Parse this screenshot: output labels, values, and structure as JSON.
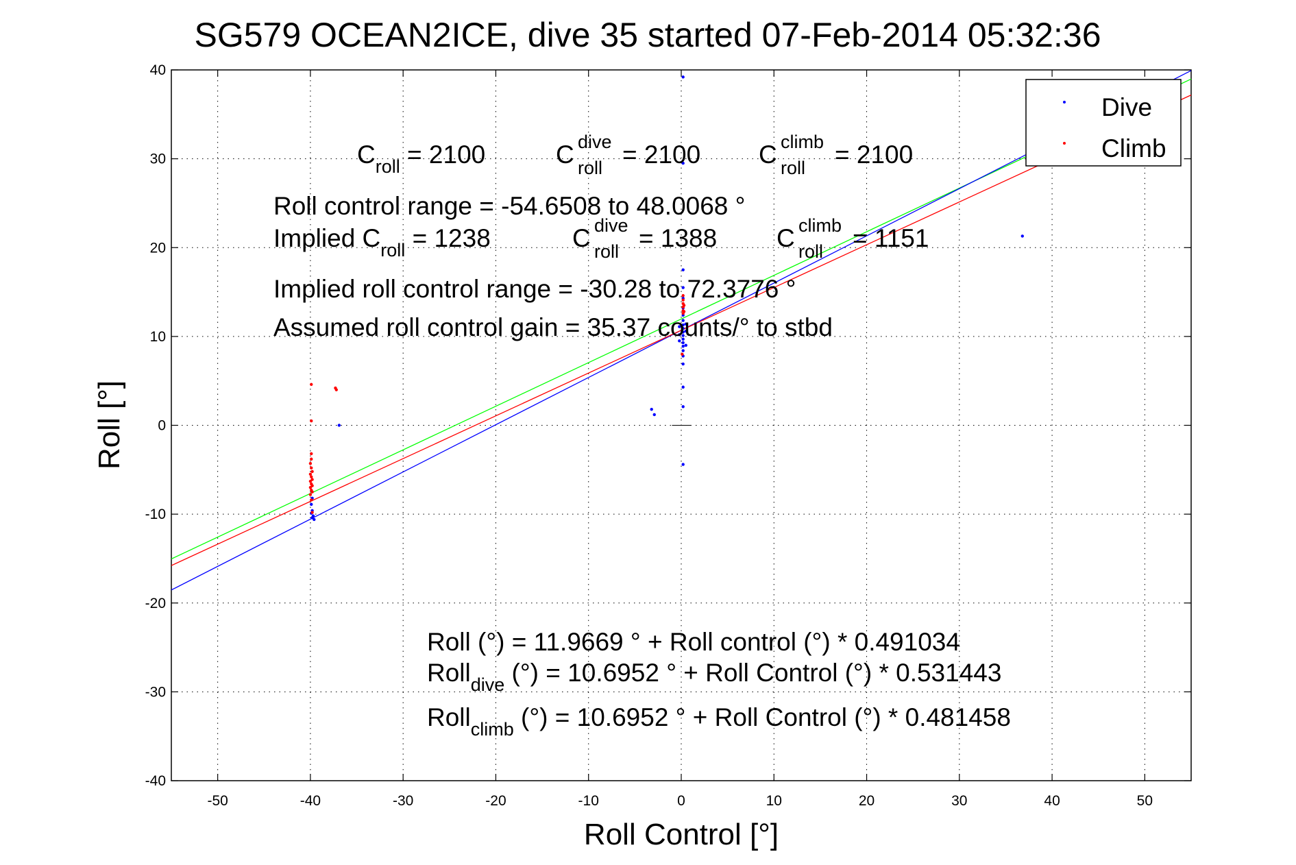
{
  "chart_data": {
    "type": "scatter",
    "title": "SG579 OCEAN2ICE, dive 35 started 07-Feb-2014 05:32:36",
    "xlabel": "Roll Control [°]",
    "ylabel": "Roll [°]",
    "xlim": [
      -55,
      55
    ],
    "ylim": [
      -40,
      40
    ],
    "xticks": [
      -50,
      -40,
      -30,
      -20,
      -10,
      0,
      10,
      20,
      30,
      40,
      50
    ],
    "yticks": [
      -40,
      -30,
      -20,
      -10,
      0,
      10,
      20,
      30,
      40
    ],
    "xtick_labels": [
      "-50",
      "-40",
      "-30",
      "-20",
      "-10",
      "0",
      "10",
      "20",
      "30",
      "40",
      "50"
    ],
    "ytick_labels": [
      "-40",
      "-30",
      "-20",
      "-10",
      "0",
      "10",
      "20",
      "30",
      "40"
    ],
    "grid": true,
    "legend_position": "top-right",
    "colors": {
      "dive": "#0000ff",
      "climb": "#ff0000",
      "fit_all": "#00ff00",
      "fit_dive": "#0000ff",
      "fit_climb": "#ff0000"
    },
    "series": [
      {
        "name": "Dive",
        "kind": "points",
        "color": "#0000ff",
        "points": [
          [
            0.2,
            39.2
          ],
          [
            0.2,
            29.5
          ],
          [
            0.2,
            17.5
          ],
          [
            0.2,
            15.5
          ],
          [
            0.2,
            14.3
          ],
          [
            0.2,
            13.2
          ],
          [
            0.2,
            12.4
          ],
          [
            0.2,
            11.8
          ],
          [
            0.2,
            11.3
          ],
          [
            0.2,
            10.9
          ],
          [
            0.2,
            10.5
          ],
          [
            0.2,
            10.1
          ],
          [
            0.2,
            9.7
          ],
          [
            0.2,
            9.3
          ],
          [
            0.2,
            8.9
          ],
          [
            0.2,
            8.4
          ],
          [
            0.2,
            7.8
          ],
          [
            0.2,
            6.9
          ],
          [
            0.2,
            4.3
          ],
          [
            0.2,
            2.1
          ],
          [
            0.2,
            -4.4
          ],
          [
            -0.2,
            11.1
          ],
          [
            -0.2,
            10.2
          ],
          [
            -0.2,
            9.5
          ],
          [
            0.5,
            11.4
          ],
          [
            0.5,
            10.6
          ],
          [
            0.5,
            9.0
          ],
          [
            -3.2,
            1.8
          ],
          [
            -2.9,
            1.2
          ],
          [
            -36.9,
            0.0
          ],
          [
            36.8,
            21.3
          ],
          [
            -39.8,
            -8.2
          ],
          [
            -39.9,
            -8.9
          ],
          [
            -39.8,
            -9.6
          ],
          [
            -39.9,
            -9.9
          ],
          [
            -39.7,
            -10.2
          ],
          [
            -39.8,
            -10.4
          ],
          [
            -39.6,
            -10.6
          ]
        ]
      },
      {
        "name": "Climb",
        "kind": "points",
        "color": "#ff0000",
        "points": [
          [
            -39.9,
            4.6
          ],
          [
            -37.3,
            4.2
          ],
          [
            -37.2,
            4.0
          ],
          [
            -39.9,
            0.5
          ],
          [
            -39.9,
            -3.2
          ],
          [
            -39.9,
            -3.8
          ],
          [
            -40.0,
            -4.3
          ],
          [
            -39.9,
            -4.8
          ],
          [
            -39.8,
            -5.2
          ],
          [
            -40.0,
            -5.5
          ],
          [
            -39.9,
            -5.8
          ],
          [
            -39.8,
            -6.1
          ],
          [
            -40.0,
            -6.3
          ],
          [
            -39.9,
            -6.6
          ],
          [
            -39.8,
            -6.8
          ],
          [
            -40.0,
            -7.0
          ],
          [
            -39.9,
            -7.3
          ],
          [
            -39.8,
            -7.5
          ],
          [
            -40.0,
            -7.8
          ],
          [
            -39.9,
            -8.4
          ],
          [
            -39.8,
            -9.8
          ],
          [
            0.2,
            14.6
          ],
          [
            0.2,
            14.1
          ],
          [
            0.2,
            13.7
          ],
          [
            0.2,
            13.3
          ],
          [
            0.2,
            12.9
          ],
          [
            0.2,
            12.6
          ],
          [
            0.3,
            13.5
          ],
          [
            0.3,
            12.8
          ],
          [
            0.1,
            8.0
          ]
        ]
      },
      {
        "kind": "line",
        "color": "#00ff00",
        "intercept": 11.9669,
        "slope": 0.491034
      },
      {
        "kind": "line",
        "color": "#0000ff",
        "intercept": 10.6952,
        "slope": 0.531443
      },
      {
        "kind": "line",
        "color": "#ff0000",
        "intercept": 10.6952,
        "slope": 0.481458
      }
    ],
    "annotations": {
      "c_roll": {
        "sym": "C",
        "sub": "roll",
        "rest": " = 2100"
      },
      "c_roll_dive": {
        "sym": "C",
        "sup": "dive",
        "sub": "roll",
        "rest": " = 2100"
      },
      "c_roll_climb": {
        "sym": "C",
        "sup": "climb",
        "sub": "roll",
        "rest": " = 2100"
      },
      "range_text": "Roll control range = -54.6508 to 48.0068 °",
      "implied_prefix": "Implied C",
      "implied_sub": "roll",
      "implied_rest": " = 1238",
      "implied_dive": {
        "sym": "C",
        "sup": "dive",
        "sub": "roll",
        "rest": " = 1388"
      },
      "implied_climb": {
        "sym": "C",
        "sup": "climb",
        "sub": "roll",
        "rest": " = 1151"
      },
      "implied_range_text": "Implied roll control range = -30.28 to 72.3776 °",
      "gain_text": "Assumed roll control gain = 35.37 counts/° to stbd",
      "eq_all": "Roll (°) = 11.9669 ° + Roll control (°) * 0.491034",
      "eq_dive_prefix": "Roll",
      "eq_dive_sub": "dive",
      "eq_dive_rest": " (°) = 10.6952 ° + Roll Control (°) * 0.531443",
      "eq_climb_prefix": "Roll",
      "eq_climb_sub": "climb",
      "eq_climb_rest": " (°) = 10.6952 ° + Roll Control (°) * 0.481458"
    },
    "legend": [
      {
        "label": "Dive",
        "color": "#0000ff"
      },
      {
        "label": "Climb",
        "color": "#ff0000"
      }
    ]
  }
}
